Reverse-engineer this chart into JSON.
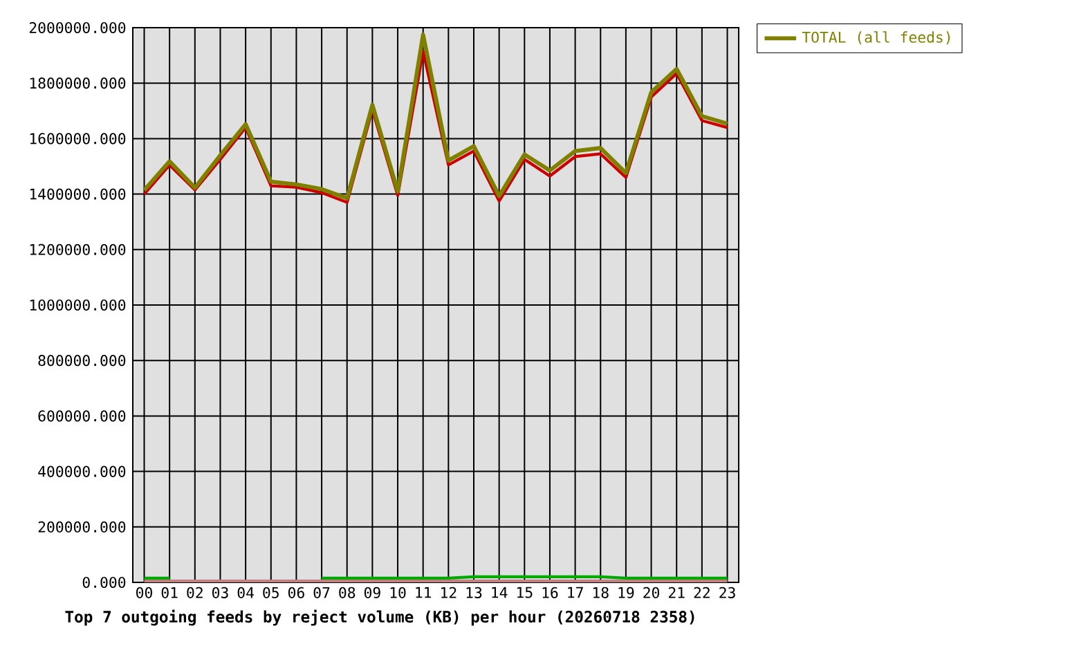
{
  "chart_data": {
    "type": "line",
    "title": "Top 7 outgoing feeds by reject volume (KB) per hour (20260718 2358)",
    "categories": [
      "00",
      "01",
      "02",
      "03",
      "04",
      "05",
      "06",
      "07",
      "08",
      "09",
      "10",
      "11",
      "12",
      "13",
      "14",
      "15",
      "16",
      "17",
      "18",
      "19",
      "20",
      "21",
      "22",
      "23"
    ],
    "series": [
      {
        "color": "#cc0000",
        "values": [
          1400000,
          1505000,
          1415000,
          1525000,
          1640000,
          1430000,
          1425000,
          1405000,
          1370000,
          1705000,
          1395000,
          1915000,
          1505000,
          1555000,
          1375000,
          1525000,
          1465000,
          1535000,
          1545000,
          1460000,
          1750000,
          1835000,
          1665000,
          1640000
        ]
      },
      {
        "color": "#00aa00",
        "values": [
          15000,
          15000,
          null,
          null,
          null,
          null,
          null,
          15000,
          15000,
          15000,
          15000,
          15000,
          15000,
          20000,
          20000,
          20000,
          20000,
          20000,
          20000,
          15000,
          15000,
          15000,
          15000,
          15000
        ]
      },
      {
        "color": "#c08080",
        "values": [
          5000,
          5000,
          5000,
          5000,
          5000,
          5000,
          5000,
          5000,
          5000,
          5000,
          5000,
          5000,
          5000,
          5000,
          5000,
          5000,
          5000,
          5000,
          5000,
          5000,
          5000,
          5000,
          5000,
          5000
        ]
      },
      {
        "name": "TOTAL (all feeds)",
        "color": "#808000",
        "values": [
          1414000,
          1518000,
          1423000,
          1540000,
          1652000,
          1445000,
          1435000,
          1418000,
          1385000,
          1722000,
          1410000,
          1975000,
          1521000,
          1573000,
          1393000,
          1543000,
          1485000,
          1555000,
          1566000,
          1476000,
          1767000,
          1851000,
          1681000,
          1654000
        ]
      }
    ],
    "ylim": [
      0,
      2000000
    ],
    "yticks": [
      {
        "value": 0,
        "label": "0.000"
      },
      {
        "value": 200000,
        "label": "200000.000"
      },
      {
        "value": 400000,
        "label": "400000.000"
      },
      {
        "value": 600000,
        "label": "600000.000"
      },
      {
        "value": 800000,
        "label": "800000.000"
      },
      {
        "value": 1000000,
        "label": "1000000.000"
      },
      {
        "value": 1200000,
        "label": "1200000.000"
      },
      {
        "value": 1400000,
        "label": "1400000.000"
      },
      {
        "value": 1600000,
        "label": "1600000.000"
      },
      {
        "value": 1800000,
        "label": "1800000.000"
      },
      {
        "value": 2000000,
        "label": "2000000.000"
      }
    ],
    "grid": true,
    "legend": "top right",
    "line_style": "solid"
  }
}
